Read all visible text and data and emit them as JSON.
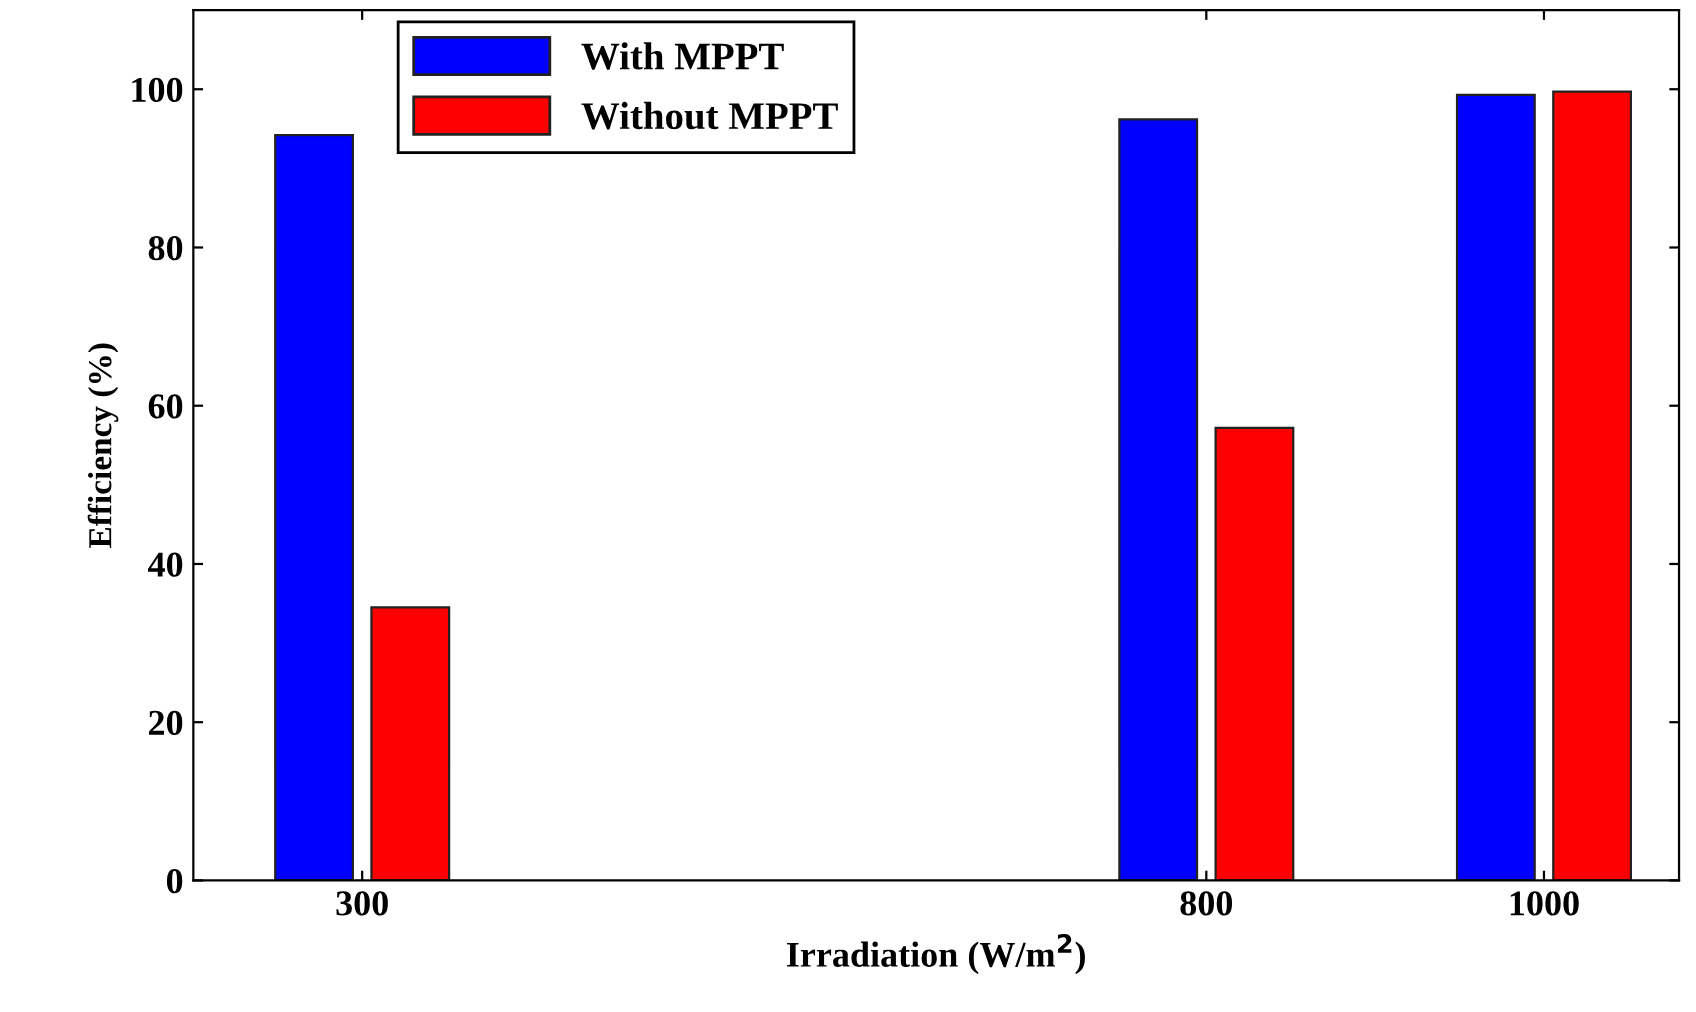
{
  "chart_data": {
    "type": "bar",
    "xlabel": "Irradiation (W/m$^{2}$)",
    "ylabel": "Efficiency (%)",
    "x": [
      300,
      800,
      1000
    ],
    "series": [
      {
        "name": "With MPPT",
        "color": "#0000ff",
        "values": [
          94.2,
          96.2,
          99.3
        ]
      },
      {
        "name": "Without MPPT",
        "color": "#ff0000",
        "values": [
          34.5,
          57.2,
          99.7
        ]
      }
    ],
    "xlim": [
      200,
      1080
    ],
    "xticks": [
      300,
      800,
      1000
    ],
    "ylim": [
      0,
      110
    ],
    "yticks": [
      0,
      20,
      40,
      60,
      80,
      100
    ],
    "grid": false,
    "legend": "top left"
  }
}
